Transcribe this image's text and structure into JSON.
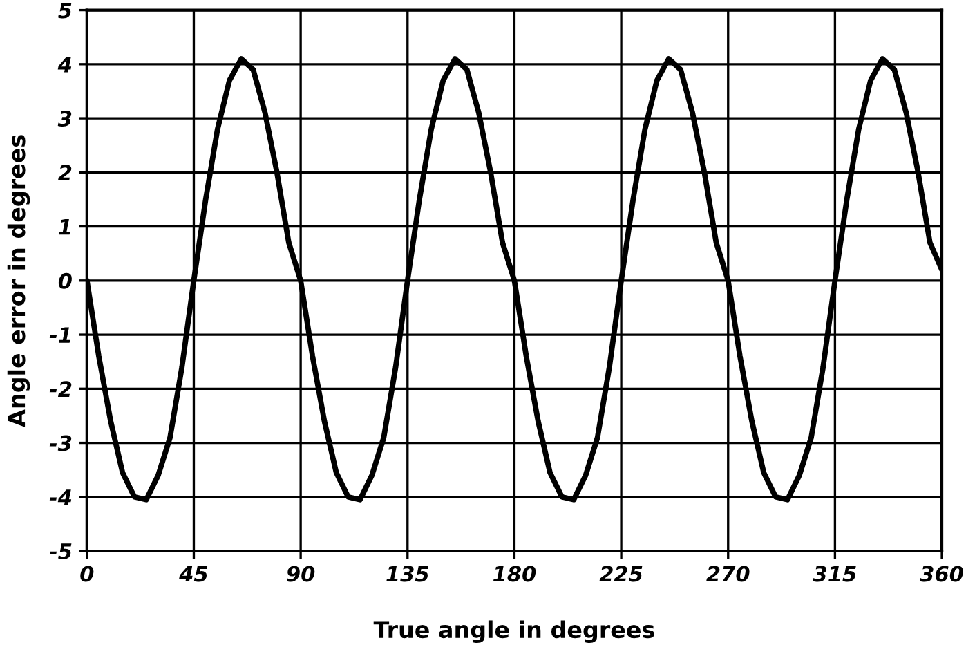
{
  "chart_data": {
    "type": "line",
    "xlabel": "True angle in degrees",
    "ylabel": "Angle error in degrees",
    "series": [
      {
        "color": "#000000",
        "x": [
          0,
          5,
          10,
          15,
          20,
          25,
          30,
          35,
          40,
          45,
          50,
          55,
          60,
          65,
          70,
          75,
          80,
          85,
          90,
          95,
          100,
          105,
          110,
          115,
          120,
          125,
          130,
          135,
          140,
          145,
          150,
          155,
          160,
          165,
          170,
          175,
          180,
          185,
          190,
          195,
          200,
          205,
          210,
          215,
          220,
          225,
          230,
          235,
          240,
          245,
          250,
          255,
          260,
          265,
          270,
          275,
          280,
          285,
          290,
          295,
          300,
          305,
          310,
          315,
          320,
          325,
          330,
          335,
          340,
          345,
          350,
          355,
          360
        ],
        "values": [
          0,
          -1.4,
          -2.6,
          -3.55,
          -4.0,
          -4.05,
          -3.6,
          -2.9,
          -1.6,
          0,
          1.5,
          2.8,
          3.7,
          4.1,
          3.9,
          3.1,
          2.0,
          0.7,
          0,
          -1.4,
          -2.6,
          -3.55,
          -4.0,
          -4.05,
          -3.6,
          -2.9,
          -1.6,
          0,
          1.5,
          2.8,
          3.7,
          4.1,
          3.9,
          3.1,
          2.0,
          0.7,
          0,
          -1.4,
          -2.6,
          -3.55,
          -4.0,
          -4.05,
          -3.6,
          -2.9,
          -1.6,
          0,
          1.5,
          2.8,
          3.7,
          4.1,
          3.9,
          3.1,
          2.0,
          0.7,
          0,
          -1.4,
          -2.6,
          -3.55,
          -4.0,
          -4.05,
          -3.6,
          -2.9,
          -1.6,
          0,
          1.5,
          2.8,
          3.7,
          4.1,
          3.9,
          3.1,
          2.0,
          0.7,
          0.2
        ]
      }
    ],
    "xlim": [
      0,
      360
    ],
    "xticks": [
      0,
      45,
      90,
      135,
      180,
      225,
      270,
      315,
      360
    ],
    "ylim": [
      -5,
      5
    ],
    "yticks": [
      -5,
      -4,
      -3,
      -2,
      -1,
      0,
      1,
      2,
      3,
      4,
      5
    ],
    "grid": true,
    "legend": false,
    "marker": "none",
    "line_style": "solid"
  }
}
